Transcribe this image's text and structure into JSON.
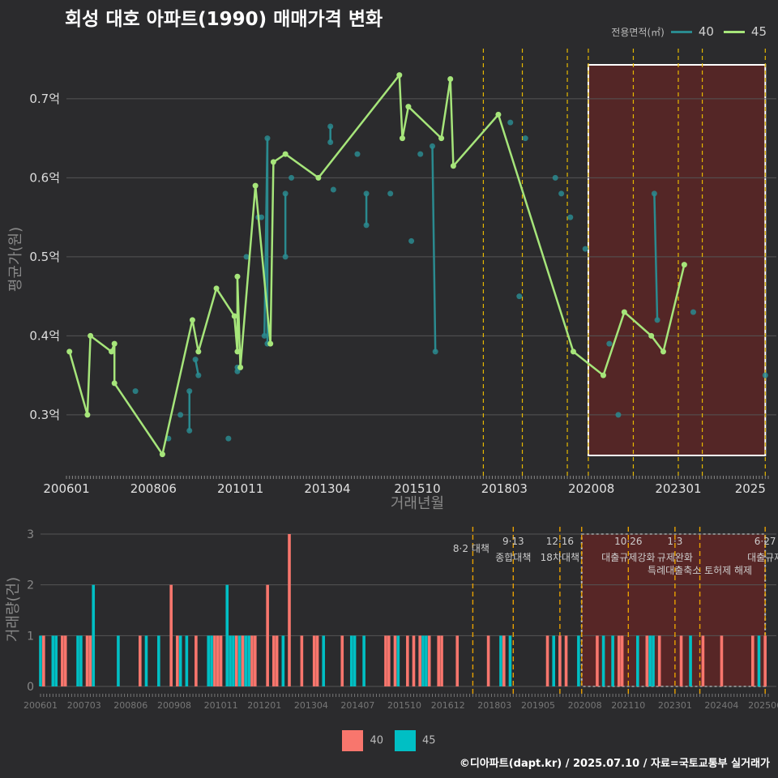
{
  "title": "회성 대호 아파트(1990) 매매가격 변화",
  "legend": {
    "title": "전용면적(㎡)",
    "items": [
      {
        "label": "40",
        "color": "#2a8a8f"
      },
      {
        "label": "45",
        "color": "#a6e57a"
      }
    ]
  },
  "bar_legend": {
    "items": [
      {
        "label": "40",
        "color": "#f8766d"
      },
      {
        "label": "45",
        "color": "#00bfc4"
      }
    ]
  },
  "footer": "©디아파트(dapt.kr) / 2025.07.10 / 자료=국토교통부 실거래가",
  "colors": {
    "background": "#2b2b2d",
    "policy_line": "#e6b800",
    "policy_line_bottom": "#e8a000",
    "highlight_fill": "#5c2626"
  },
  "chart_data": [
    {
      "type": "line",
      "xlabel": "거래년월",
      "ylabel": "평균가(원)",
      "x_ticks": [
        "200601",
        "200806",
        "201011",
        "201304",
        "201510",
        "201803",
        "202008",
        "202301",
        "2025"
      ],
      "y_ticks": [
        "0.3억",
        "0.4억",
        "0.5억",
        "0.6억",
        "0.7억"
      ],
      "ylim": [
        0.225,
        0.745
      ],
      "xlim": [
        "2006-01",
        "2025-07"
      ],
      "grid": true,
      "highlight_range": [
        "2020-07",
        "2025-06"
      ],
      "policy_lines": [
        "2017-08",
        "2018-09",
        "2019-12",
        "2020-07",
        "2021-10",
        "2023-01",
        "2023-09",
        "2025-06"
      ],
      "series": [
        {
          "name": "40",
          "color": "#2a8a8f",
          "points": [
            [
              "2007-12",
              0.33
            ],
            [
              "2008-11",
              0.27
            ],
            [
              "2009-03",
              0.3
            ],
            [
              "2009-06",
              0.28
            ],
            [
              "2009-06",
              0.33
            ],
            [
              "2009-08",
              0.37
            ],
            [
              "2009-09",
              0.35
            ],
            [
              "2010-07",
              0.27
            ],
            [
              "2010-10",
              0.355
            ],
            [
              "2010-10",
              0.36
            ],
            [
              "2011-01",
              0.5
            ],
            [
              "2011-05",
              0.55
            ],
            [
              "2011-06",
              0.55
            ],
            [
              "2011-07",
              0.4
            ],
            [
              "2011-08",
              0.65
            ],
            [
              "2011-08",
              0.39
            ],
            [
              "2012-02",
              0.5
            ],
            [
              "2012-02",
              0.58
            ],
            [
              "2012-04",
              0.6
            ],
            [
              "2013-05",
              0.665
            ],
            [
              "2013-05",
              0.645
            ],
            [
              "2013-06",
              0.585
            ],
            [
              "2014-02",
              0.63
            ],
            [
              "2014-05",
              0.54
            ],
            [
              "2014-05",
              0.58
            ],
            [
              "2015-01",
              0.58
            ],
            [
              "2015-08",
              0.52
            ],
            [
              "2015-11",
              0.63
            ],
            [
              "2016-03",
              0.64
            ],
            [
              "2016-04",
              0.38
            ],
            [
              "2018-05",
              0.67
            ],
            [
              "2018-08",
              0.45
            ],
            [
              "2018-10",
              0.65
            ],
            [
              "2019-08",
              0.6
            ],
            [
              "2019-10",
              0.58
            ],
            [
              "2020-01",
              0.55
            ],
            [
              "2020-06",
              0.51
            ],
            [
              "2021-02",
              0.39
            ],
            [
              "2021-05",
              0.3
            ],
            [
              "2022-05",
              0.58
            ],
            [
              "2022-06",
              0.42
            ],
            [
              "2023-06",
              0.43
            ],
            [
              "2025-06",
              0.35
            ]
          ]
        },
        {
          "name": "45",
          "color": "#a6e57a",
          "points": [
            [
              "2006-02",
              0.38
            ],
            [
              "2006-08",
              0.3
            ],
            [
              "2006-09",
              0.4
            ],
            [
              "2007-04",
              0.38
            ],
            [
              "2007-05",
              0.39
            ],
            [
              "2007-05",
              0.34
            ],
            [
              "2008-09",
              0.25
            ],
            [
              "2009-07",
              0.42
            ],
            [
              "2009-09",
              0.38
            ],
            [
              "2010-03",
              0.46
            ],
            [
              "2010-09",
              0.425
            ],
            [
              "2010-10",
              0.38
            ],
            [
              "2010-10",
              0.475
            ],
            [
              "2010-11",
              0.36
            ],
            [
              "2011-04",
              0.59
            ],
            [
              "2011-09",
              0.39
            ],
            [
              "2011-10",
              0.62
            ],
            [
              "2012-02",
              0.63
            ],
            [
              "2013-01",
              0.6
            ],
            [
              "2015-04",
              0.73
            ],
            [
              "2015-05",
              0.65
            ],
            [
              "2015-07",
              0.69
            ],
            [
              "2016-06",
              0.65
            ],
            [
              "2016-09",
              0.725
            ],
            [
              "2016-10",
              0.615
            ],
            [
              "2018-01",
              0.68
            ],
            [
              "2020-02",
              0.38
            ],
            [
              "2020-12",
              0.35
            ],
            [
              "2021-07",
              0.43
            ],
            [
              "2022-04",
              0.4
            ],
            [
              "2022-08",
              0.38
            ],
            [
              "2023-03",
              0.49
            ]
          ]
        }
      ]
    },
    {
      "type": "bar",
      "ylabel": "거래량(건)",
      "x_ticks": [
        "200601",
        "200703",
        "200806",
        "200908",
        "201011",
        "201201",
        "201304",
        "201407",
        "201510",
        "201612",
        "201803",
        "201905",
        "202008",
        "202110",
        "202301",
        "202404",
        "202506"
      ],
      "y_ticks": [
        "0",
        "1",
        "2",
        "3"
      ],
      "ylim": [
        0,
        3
      ],
      "highlight_range": [
        "2020-07",
        "2025-06"
      ],
      "policy_lines": [
        "2017-08",
        "2018-09",
        "2019-12",
        "2020-07",
        "2021-10",
        "2023-01",
        "2023-09",
        "2025-06"
      ],
      "annotations": [
        {
          "at": "2017-08",
          "lines": [
            "8·2 대책"
          ]
        },
        {
          "at": "2018-09",
          "lines": [
            "9·13",
            "종합대책"
          ]
        },
        {
          "at": "2019-12",
          "lines": [
            "12·16",
            "18차대책"
          ]
        },
        {
          "at": "2021-10",
          "lines": [
            "10·26",
            "대출규제강화"
          ]
        },
        {
          "at": "2023-01",
          "lines": [
            "1·3",
            "규제완화"
          ]
        },
        {
          "at": "2023-09",
          "lines": [
            "",
            "특례대출축소 토허제 해제"
          ]
        },
        {
          "at": "2025-06",
          "lines": [
            "6·27",
            "대출규제"
          ]
        }
      ],
      "series": [
        {
          "name": "40",
          "color": "#f8766d",
          "bars": [
            [
              "2006-02",
              1
            ],
            [
              "2006-08",
              1
            ],
            [
              "2006-09",
              1
            ],
            [
              "2007-04",
              1
            ],
            [
              "2007-05",
              1
            ],
            [
              "2008-09",
              1
            ],
            [
              "2009-07",
              2
            ],
            [
              "2009-09",
              1
            ],
            [
              "2010-03",
              1
            ],
            [
              "2010-09",
              1
            ],
            [
              "2010-10",
              1
            ],
            [
              "2010-11",
              1
            ],
            [
              "2011-04",
              1
            ],
            [
              "2011-06",
              1
            ],
            [
              "2011-09",
              1
            ],
            [
              "2011-10",
              1
            ],
            [
              "2012-02",
              2
            ],
            [
              "2012-04",
              1
            ],
            [
              "2012-05",
              1
            ],
            [
              "2012-09",
              3
            ],
            [
              "2013-01",
              1
            ],
            [
              "2013-05",
              1
            ],
            [
              "2013-06",
              1
            ],
            [
              "2014-02",
              1
            ],
            [
              "2015-04",
              1
            ],
            [
              "2015-05",
              1
            ],
            [
              "2015-07",
              1
            ],
            [
              "2015-11",
              1
            ],
            [
              "2016-01",
              1
            ],
            [
              "2016-03",
              1
            ],
            [
              "2016-06",
              1
            ],
            [
              "2016-09",
              1
            ],
            [
              "2016-10",
              1
            ],
            [
              "2017-03",
              1
            ],
            [
              "2018-01",
              1
            ],
            [
              "2018-06",
              1
            ],
            [
              "2019-08",
              1
            ],
            [
              "2019-12",
              1
            ],
            [
              "2020-02",
              1
            ],
            [
              "2020-12",
              1
            ],
            [
              "2021-07",
              1
            ],
            [
              "2021-08",
              1
            ],
            [
              "2022-04",
              1
            ],
            [
              "2022-08",
              1
            ],
            [
              "2023-03",
              1
            ],
            [
              "2023-10",
              1
            ],
            [
              "2024-04",
              1
            ],
            [
              "2025-02",
              1
            ],
            [
              "2025-06",
              1
            ]
          ]
        },
        {
          "name": "45",
          "color": "#00bfc4",
          "bars": [
            [
              "2006-01",
              1
            ],
            [
              "2006-05",
              1
            ],
            [
              "2006-06",
              1
            ],
            [
              "2007-01",
              1
            ],
            [
              "2007-02",
              1
            ],
            [
              "2007-06",
              2
            ],
            [
              "2008-02",
              1
            ],
            [
              "2008-11",
              1
            ],
            [
              "2009-03",
              1
            ],
            [
              "2009-10",
              1
            ],
            [
              "2009-12",
              1
            ],
            [
              "2010-07",
              1
            ],
            [
              "2010-08",
              1
            ],
            [
              "2011-01",
              2
            ],
            [
              "2011-02",
              1
            ],
            [
              "2011-03",
              1
            ],
            [
              "2011-05",
              1
            ],
            [
              "2011-07",
              1
            ],
            [
              "2011-08",
              1
            ],
            [
              "2012-07",
              1
            ],
            [
              "2013-08",
              1
            ],
            [
              "2014-05",
              1
            ],
            [
              "2014-06",
              1
            ],
            [
              "2014-09",
              1
            ],
            [
              "2015-08",
              1
            ],
            [
              "2016-04",
              1
            ],
            [
              "2016-05",
              1
            ],
            [
              "2018-05",
              1
            ],
            [
              "2018-08",
              1
            ],
            [
              "2019-10",
              1
            ],
            [
              "2020-06",
              1
            ],
            [
              "2021-02",
              1
            ],
            [
              "2021-05",
              1
            ],
            [
              "2022-01",
              1
            ],
            [
              "2022-05",
              1
            ],
            [
              "2022-06",
              1
            ],
            [
              "2023-06",
              1
            ],
            [
              "2025-04",
              1
            ]
          ]
        }
      ]
    }
  ]
}
